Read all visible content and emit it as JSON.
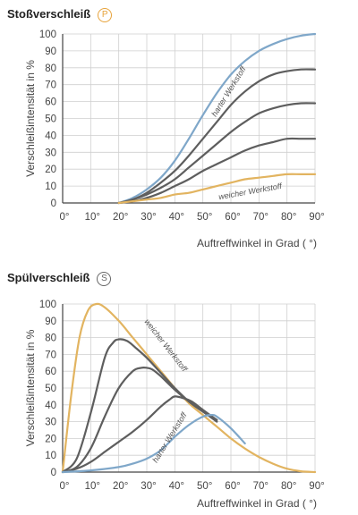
{
  "chart_data": [
    {
      "type": "line",
      "title": "Stoßverschleiß",
      "badge": "P",
      "xlabel": "Auftreffwinkel in Grad ( °)",
      "ylabel": "Verschleißintensität in %",
      "xlim": [
        0,
        90
      ],
      "ylim": [
        0,
        100
      ],
      "xticks": [
        "0°",
        "10°",
        "20°",
        "30°",
        "40°",
        "50°",
        "60°",
        "70°",
        "80°",
        "90°"
      ],
      "yticks": [
        "0",
        "10",
        "20",
        "30",
        "40",
        "50",
        "60",
        "70",
        "80",
        "90",
        "100"
      ],
      "grid": true,
      "annotations": [
        "harter Werkstoff",
        "weicher Werkstoff"
      ],
      "series": [
        {
          "color": "#7fa7c9",
          "x": [
            20,
            25,
            30,
            35,
            40,
            45,
            50,
            55,
            60,
            65,
            70,
            75,
            80,
            85,
            90
          ],
          "y": [
            0,
            3,
            8,
            15,
            25,
            38,
            52,
            65,
            76,
            84,
            90,
            94,
            97,
            99,
            100
          ]
        },
        {
          "color": "#5e5e5e",
          "x": [
            20,
            25,
            30,
            35,
            40,
            45,
            50,
            55,
            60,
            65,
            70,
            75,
            80,
            85,
            90
          ],
          "y": [
            0,
            2,
            6,
            12,
            19,
            28,
            38,
            48,
            58,
            66,
            72,
            76,
            78,
            79,
            79
          ]
        },
        {
          "color": "#5e5e5e",
          "x": [
            20,
            25,
            30,
            35,
            40,
            45,
            50,
            55,
            60,
            65,
            70,
            75,
            80,
            85,
            90
          ],
          "y": [
            0,
            2,
            5,
            9,
            14,
            21,
            28,
            35,
            42,
            48,
            53,
            56,
            58,
            59,
            59
          ]
        },
        {
          "color": "#5e5e5e",
          "x": [
            20,
            25,
            30,
            35,
            40,
            45,
            50,
            55,
            60,
            65,
            70,
            75,
            80,
            85,
            90
          ],
          "y": [
            0,
            1,
            3,
            6,
            10,
            14,
            19,
            23,
            27,
            31,
            34,
            36,
            38,
            38,
            38
          ]
        },
        {
          "color": "#e2b460",
          "x": [
            20,
            25,
            30,
            35,
            40,
            45,
            50,
            55,
            60,
            65,
            70,
            75,
            80,
            85,
            90
          ],
          "y": [
            0,
            1,
            2,
            3,
            5,
            6,
            8,
            10,
            12,
            14,
            15,
            16,
            17,
            17,
            17
          ]
        }
      ]
    },
    {
      "type": "line",
      "title": "Spülverschleiß",
      "badge": "S",
      "xlabel": "Auftreffwinkel in Grad ( °)",
      "ylabel": "Verschleißintensität in %",
      "xlim": [
        0,
        90
      ],
      "ylim": [
        0,
        100
      ],
      "xticks": [
        "0°",
        "10°",
        "20°",
        "30°",
        "40°",
        "50°",
        "60°",
        "70°",
        "80°",
        "90°"
      ],
      "yticks": [
        "0",
        "10",
        "20",
        "30",
        "40",
        "50",
        "60",
        "70",
        "80",
        "90",
        "100"
      ],
      "grid": true,
      "annotations": [
        "weicher Werkstoff",
        "harter Werkstoff"
      ],
      "series": [
        {
          "color": "#e2b460",
          "x": [
            0,
            3,
            6,
            9,
            12,
            15,
            20,
            25,
            30,
            35,
            40,
            45,
            50,
            55,
            60,
            65,
            70,
            75,
            80,
            85,
            90
          ],
          "y": [
            0,
            45,
            80,
            96,
            100,
            98,
            90,
            80,
            70,
            60,
            50,
            41,
            34,
            27,
            20,
            14,
            9,
            5,
            2,
            0.5,
            0
          ]
        },
        {
          "color": "#5e5e5e",
          "x": [
            0,
            5,
            10,
            15,
            18,
            20,
            23,
            26,
            30,
            35,
            40,
            45,
            50,
            55
          ],
          "y": [
            0,
            8,
            35,
            68,
            77,
            79,
            78,
            74,
            68,
            59,
            50,
            42,
            36,
            30
          ]
        },
        {
          "color": "#5e5e5e",
          "x": [
            0,
            5,
            10,
            15,
            20,
            25,
            28,
            30,
            32,
            35,
            40,
            45,
            50,
            55
          ],
          "y": [
            0,
            3,
            14,
            33,
            50,
            60,
            62,
            62,
            61,
            57,
            49,
            42,
            36,
            31
          ]
        },
        {
          "color": "#5e5e5e",
          "x": [
            0,
            5,
            10,
            15,
            20,
            25,
            30,
            35,
            38,
            40,
            43,
            46,
            50,
            55
          ],
          "y": [
            0,
            2,
            6,
            12,
            18,
            24,
            31,
            39,
            43,
            45,
            44,
            42,
            37,
            31
          ]
        },
        {
          "color": "#7fa7c9",
          "x": [
            0,
            10,
            20,
            25,
            30,
            35,
            40,
            45,
            50,
            53,
            55,
            60,
            65
          ],
          "y": [
            0,
            1,
            3,
            5,
            8,
            13,
            21,
            28,
            33,
            34,
            33,
            26,
            17
          ]
        }
      ]
    }
  ]
}
